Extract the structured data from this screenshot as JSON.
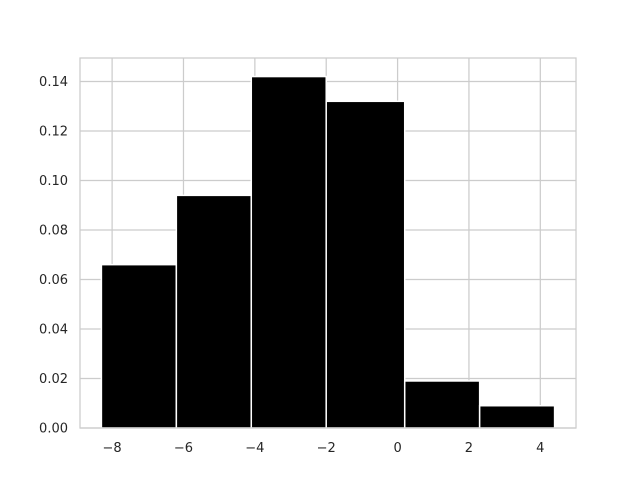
{
  "chart_data": {
    "type": "histogram",
    "bins": [
      {
        "x0": -8.3,
        "x1": -6.2,
        "value": 0.066
      },
      {
        "x0": -6.2,
        "x1": -4.1,
        "value": 0.094
      },
      {
        "x0": -4.1,
        "x1": -2.0,
        "value": 0.142
      },
      {
        "x0": -2.0,
        "x1": 0.2,
        "value": 0.132
      },
      {
        "x0": 0.2,
        "x1": 2.3,
        "value": 0.019
      },
      {
        "x0": 2.3,
        "x1": 4.4,
        "value": 0.009
      }
    ],
    "x_ticks": [
      -8,
      -6,
      -4,
      -2,
      0,
      2,
      4
    ],
    "x_tick_labels": [
      "−8",
      "−6",
      "−4",
      "−2",
      "0",
      "2",
      "4"
    ],
    "y_ticks": [
      0.0,
      0.02,
      0.04,
      0.06,
      0.08,
      0.1,
      0.12,
      0.14
    ],
    "y_tick_labels": [
      "0.00",
      "0.02",
      "0.04",
      "0.06",
      "0.08",
      "0.10",
      "0.12",
      "0.14"
    ],
    "xlim": [
      -8.9,
      5.0
    ],
    "ylim": [
      0,
      0.1495
    ],
    "grid": true,
    "bar_color": "#000000",
    "bar_edge_color": "#ffffff",
    "grid_color": "#cccccc",
    "frame_color": "#cccccc",
    "title": "",
    "xlabel": "",
    "ylabel": ""
  }
}
